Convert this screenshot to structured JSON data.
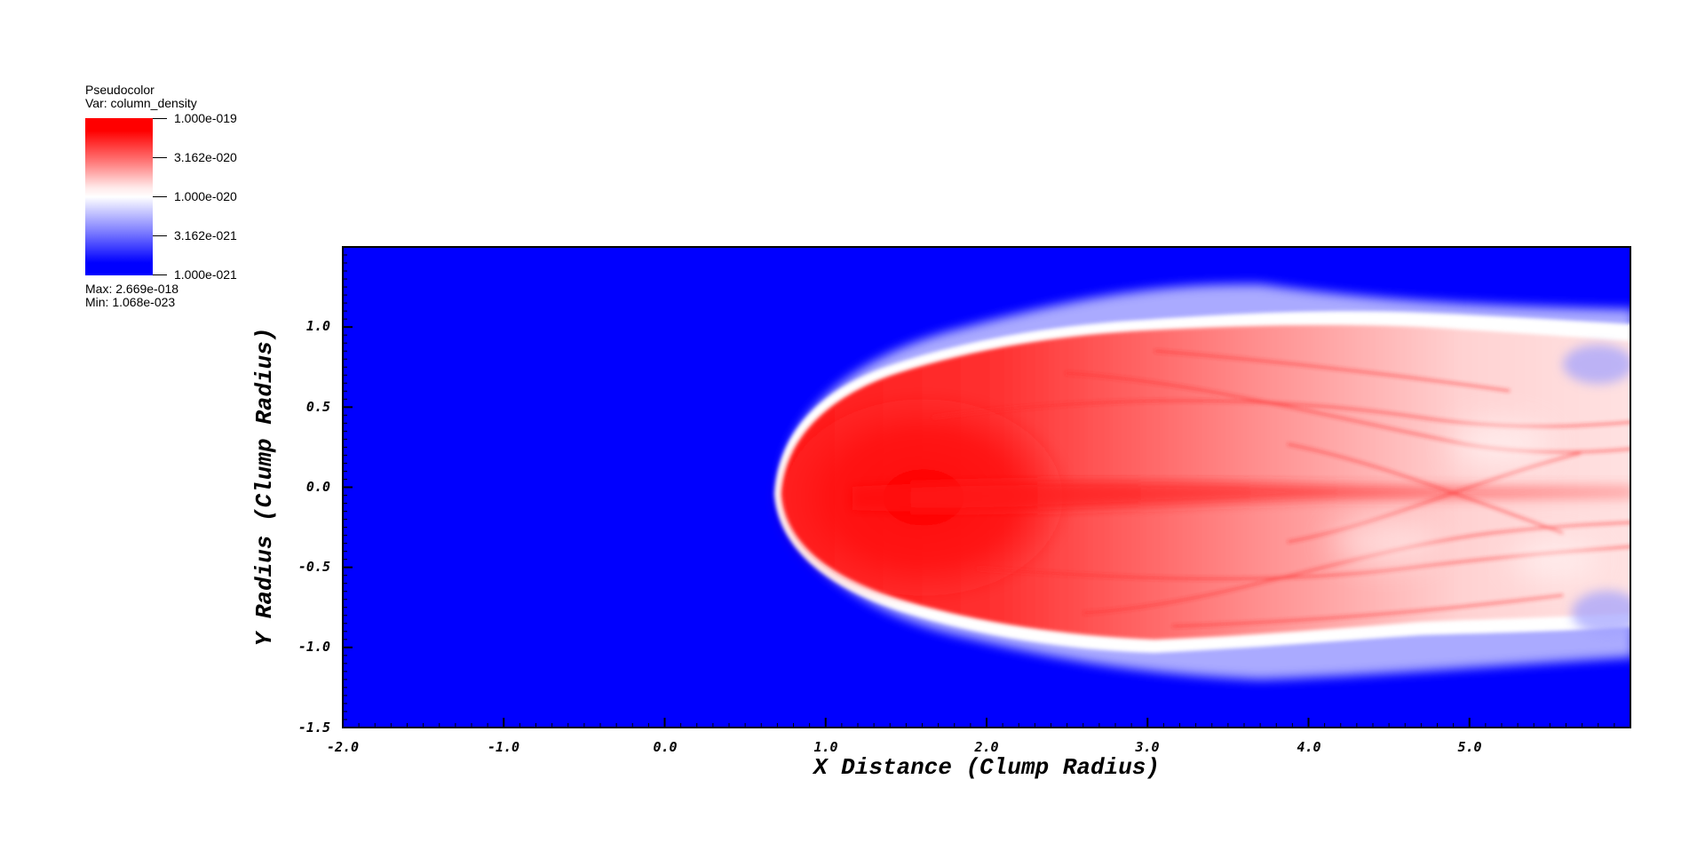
{
  "legend": {
    "title": "Pseudocolor",
    "var": "Var: column_density",
    "ticks": [
      "1.000e-019",
      "3.162e-020",
      "1.000e-020",
      "3.162e-021",
      "1.000e-021"
    ],
    "max": "Max:  2.669e-018",
    "min": "Min:  1.068e-023",
    "colors": {
      "high": "#ff0000",
      "mid": "#ffffff",
      "low": "#0000ff"
    }
  },
  "chart_data": {
    "type": "heatmap",
    "title": "",
    "xlabel": "X Distance (Clump Radius)",
    "ylabel": "Y Radius (Clump Radius)",
    "xlim": [
      -2.0,
      6.0
    ],
    "ylim": [
      -1.5,
      1.5
    ],
    "xticks": [
      "-2.0",
      "-1.0",
      "0.0",
      "1.0",
      "2.0",
      "3.0",
      "4.0",
      "5.0"
    ],
    "yticks": [
      "1.0",
      "0.5",
      "0.0",
      "-0.5",
      "-1.0",
      "-1.5"
    ],
    "scale": "log",
    "variable": "column_density",
    "colormap": [
      "#0000ff",
      "#ffffff",
      "#ff0000"
    ],
    "value_range": [
      1e-21,
      1e-19
    ],
    "data_min": 1.068e-23,
    "data_max": 2.669e-18,
    "background_level": "low",
    "feature": {
      "shape": "elongated cometary clump with tail extending to +x",
      "head_x": 0.7,
      "core_x": 1.6,
      "core_y": -0.1,
      "tail_y_extent": [
        -1.1,
        1.05
      ]
    }
  }
}
